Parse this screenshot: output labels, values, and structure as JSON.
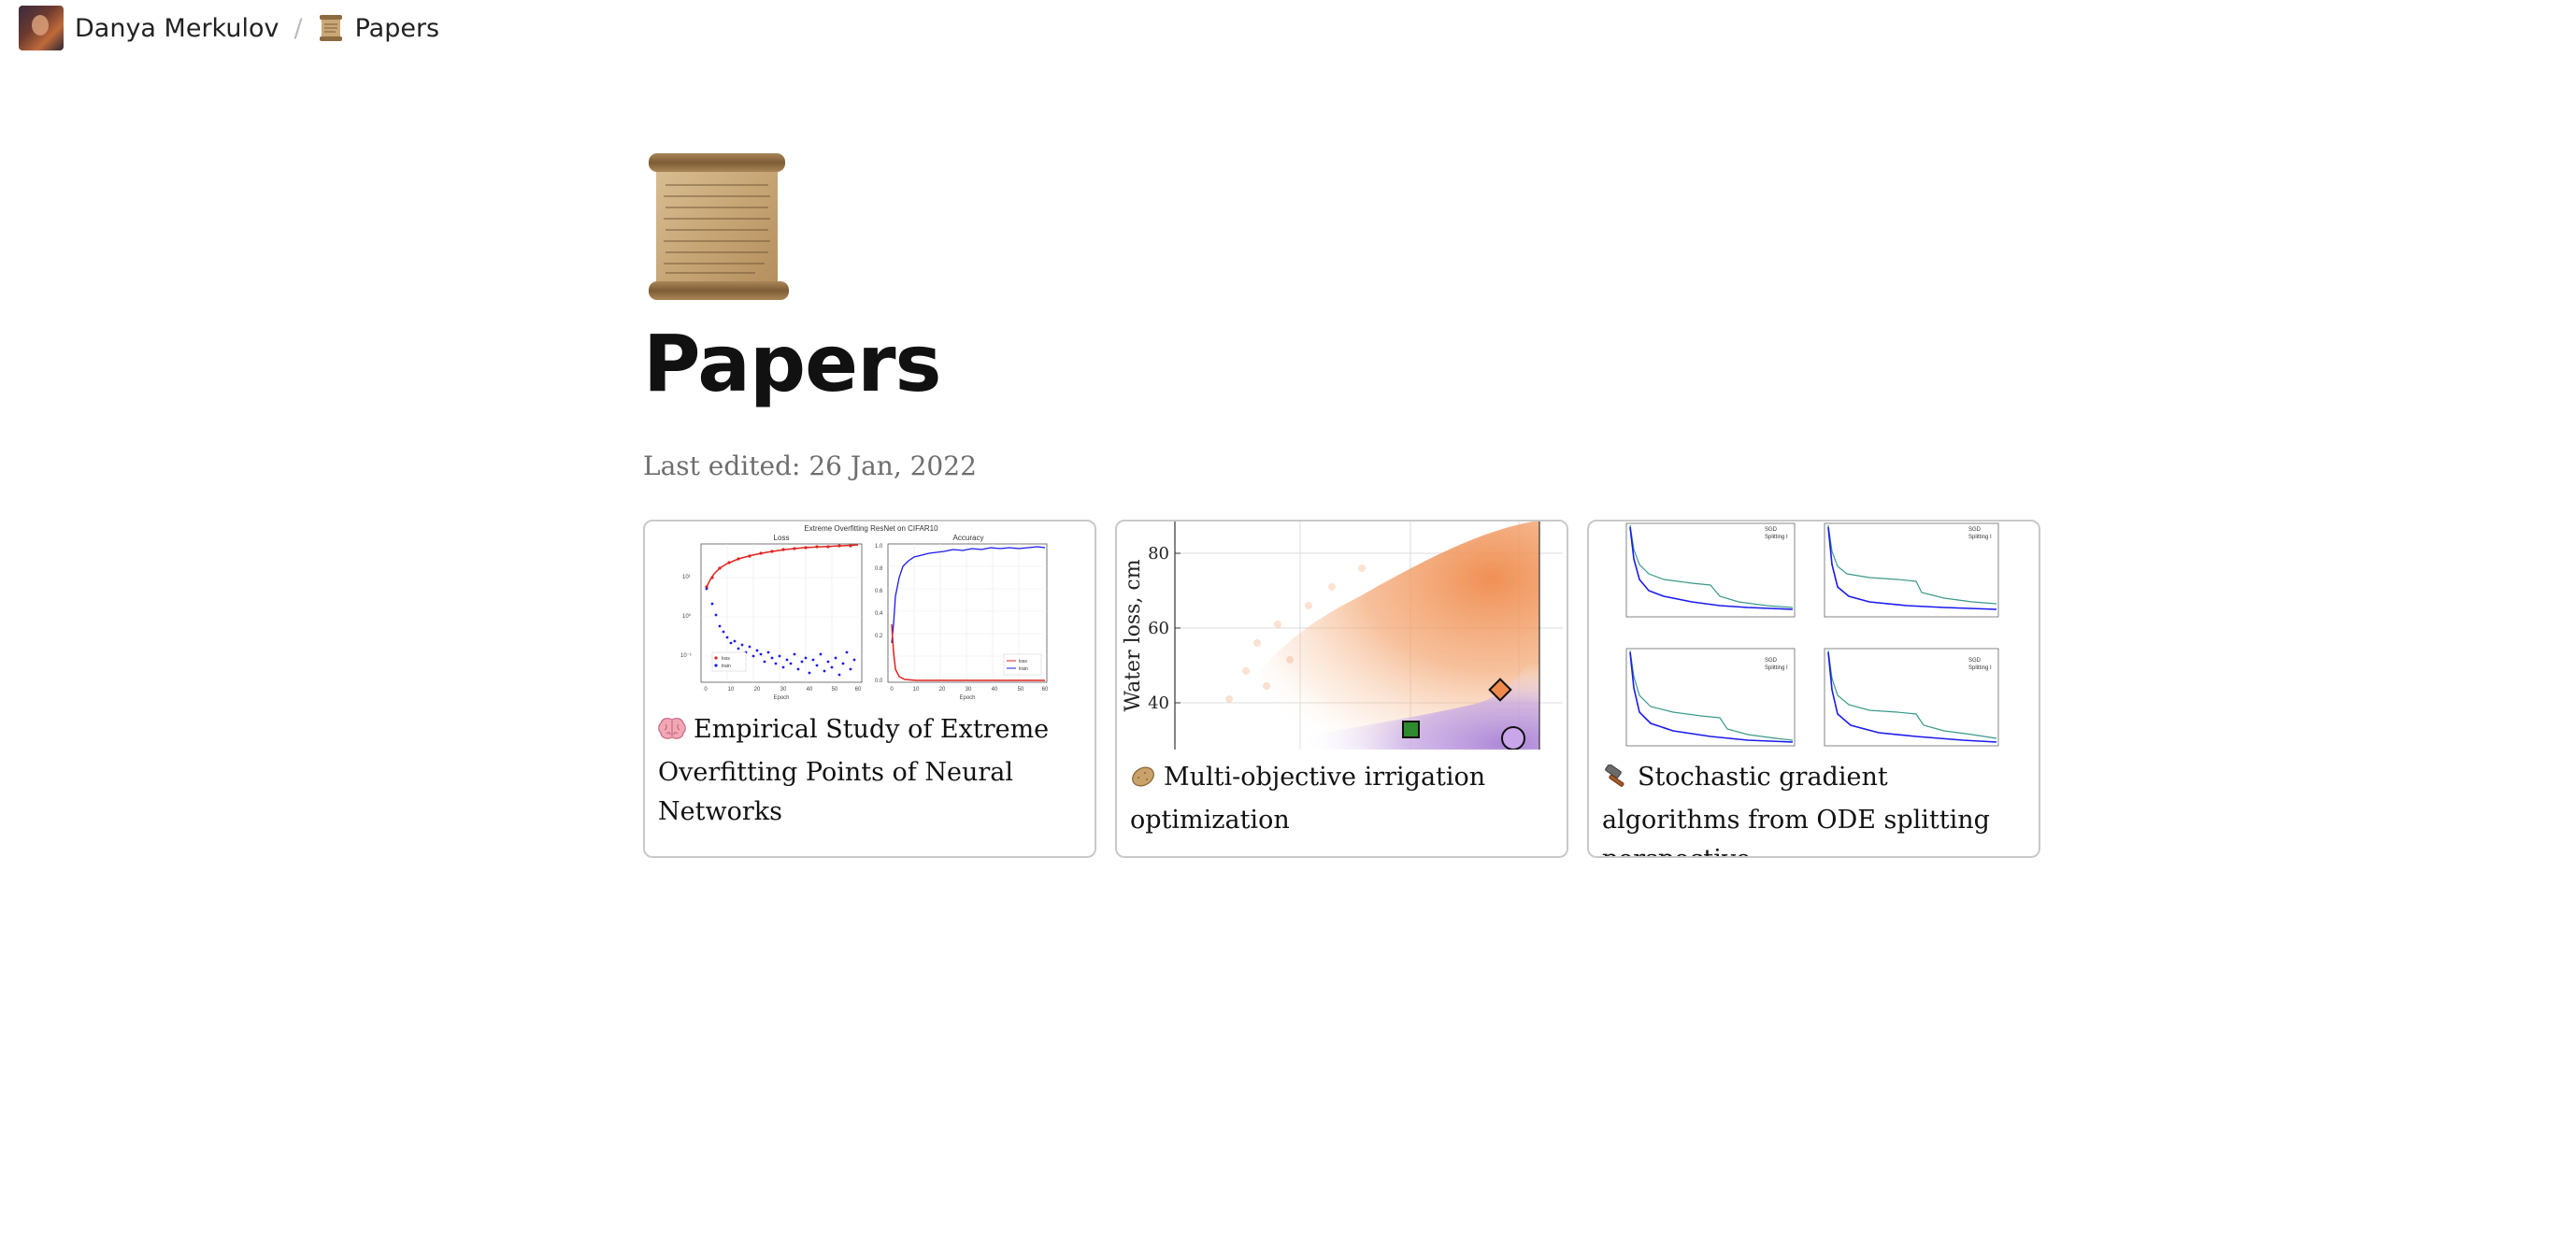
{
  "breadcrumb": {
    "author": "Danya Merkulov",
    "separator": "/",
    "current": "Papers"
  },
  "page": {
    "icon": "scroll-icon",
    "title": "Papers",
    "last_edited": "Last edited: 26 Jan, 2022"
  },
  "cards": [
    {
      "emoji": "brain-icon",
      "title": "Empirical Study of Extreme Overfitting Points of Neural Networks",
      "thumb": {
        "figure_title": "Extreme Overfitting ResNet on CIFAR10",
        "left_title": "Loss",
        "right_title": "Accuracy",
        "xlabel": "Epoch",
        "left_ticks_y": [
          "10¹",
          "10⁰",
          "10⁻¹"
        ],
        "right_ticks_y": [
          "1.0",
          "0.8",
          "0.6",
          "0.4",
          "0.2",
          "0.0"
        ],
        "ticks_x": [
          "0",
          "10",
          "20",
          "30",
          "40",
          "50",
          "60"
        ],
        "legend": [
          "train",
          "train"
        ]
      }
    },
    {
      "emoji": "potato-icon",
      "title": "Multi-objective irrigation optimization",
      "thumb": {
        "ylabel": "Water loss, cm",
        "ticks_y": [
          "80",
          "60",
          "40"
        ]
      }
    },
    {
      "emoji": "hammer-icon",
      "title": "Stochastic gradient algorithms from ODE splitting perspective",
      "thumb": {
        "legend": [
          "SGD",
          "Splitting I"
        ]
      }
    }
  ],
  "colors": {
    "orange": "#ef8a4c",
    "purple": "#a77fd6",
    "red": "#e0231f",
    "blue": "#1a1aee"
  }
}
